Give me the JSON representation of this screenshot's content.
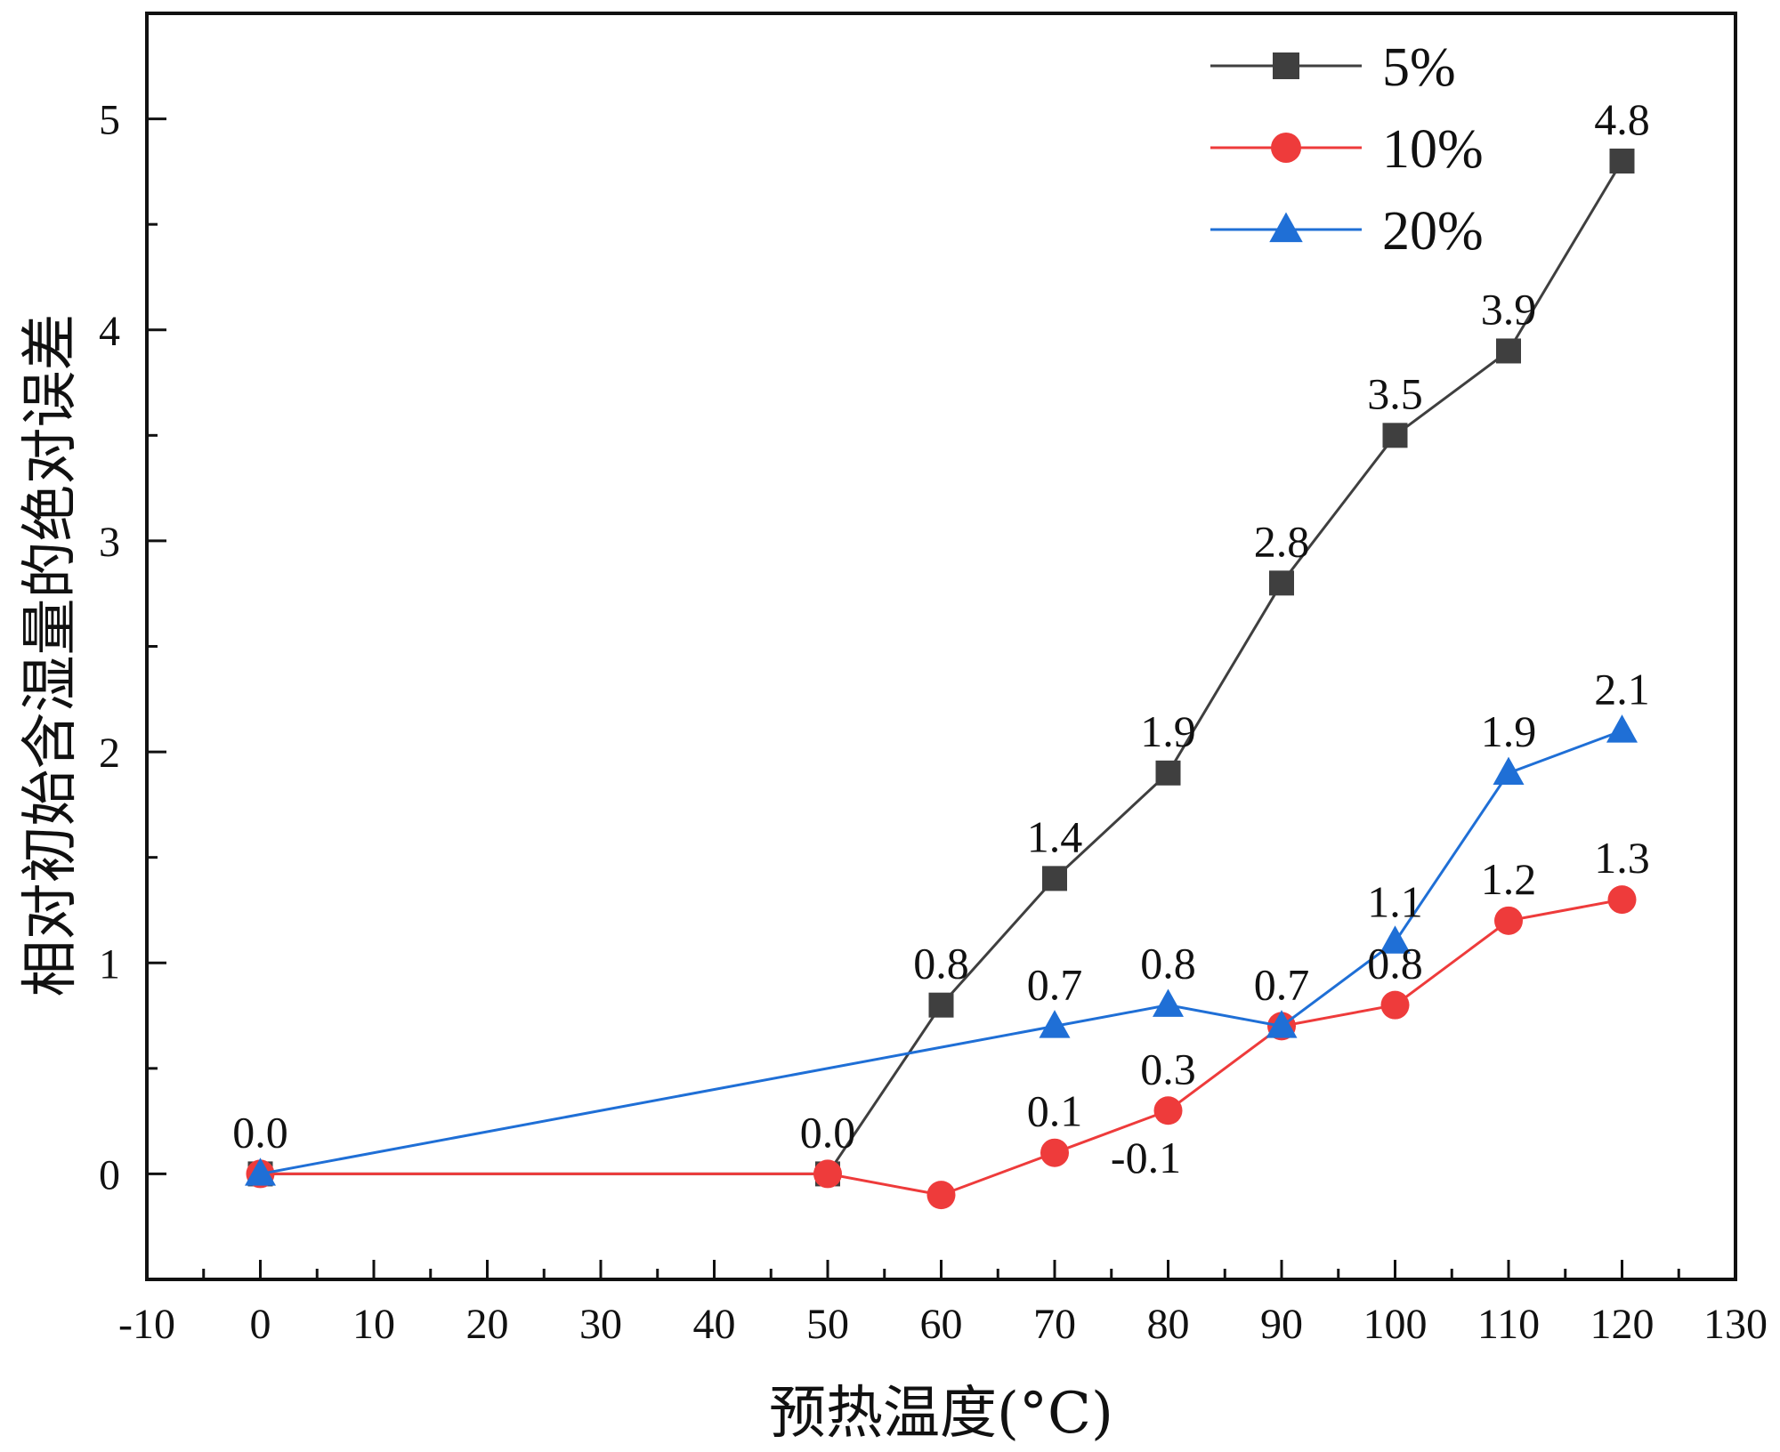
{
  "chart_data": {
    "type": "line",
    "title": "",
    "xlabel": "预热温度(°C)",
    "ylabel": "相对初始含湿量的绝对误差",
    "xlim": [
      -10,
      130
    ],
    "ylim": [
      -0.5,
      5.5
    ],
    "xticks": [
      -10,
      0,
      10,
      20,
      30,
      40,
      50,
      60,
      70,
      80,
      90,
      100,
      110,
      120,
      130
    ],
    "xtick_labels": [
      "-10",
      "0",
      "10",
      "20",
      "30",
      "40",
      "50",
      "60",
      "70",
      "80",
      "90",
      "100",
      "110",
      "120",
      "130"
    ],
    "yticks": [
      0,
      1,
      2,
      3,
      4,
      5
    ],
    "ytick_labels": [
      "0",
      "1",
      "2",
      "3",
      "4",
      "5"
    ],
    "grid": false,
    "legend_position": "top-right",
    "series": [
      {
        "name": "5%",
        "color": "#3f3f3f",
        "marker": "square",
        "x": [
          0,
          50,
          60,
          70,
          80,
          90,
          100,
          110,
          120
        ],
        "values": [
          0,
          0,
          0.8,
          1.4,
          1.9,
          2.8,
          3.5,
          3.9,
          4.8
        ],
        "labels": [
          {
            "x": 0,
            "y": 0,
            "text": "0.0"
          },
          {
            "x": 50,
            "y": 0,
            "text": "0.0"
          },
          {
            "x": 60,
            "y": 0.8,
            "text": "0.8"
          },
          {
            "x": 70,
            "y": 1.4,
            "text": "1.4"
          },
          {
            "x": 80,
            "y": 1.9,
            "text": "1.9"
          },
          {
            "x": 90,
            "y": 2.8,
            "text": "2.8"
          },
          {
            "x": 100,
            "y": 3.5,
            "text": "3.5"
          },
          {
            "x": 110,
            "y": 3.9,
            "text": "3.9"
          },
          {
            "x": 120,
            "y": 4.8,
            "text": "4.8"
          }
        ]
      },
      {
        "name": "10%",
        "color": "#ee3b3b",
        "marker": "circle",
        "x": [
          0,
          50,
          60,
          70,
          80,
          90,
          100,
          110,
          120
        ],
        "values": [
          0,
          0,
          -0.1,
          0.1,
          0.3,
          0.7,
          0.8,
          1.2,
          1.3
        ],
        "labels": [
          {
            "x": 60,
            "y": -0.1,
            "text": "-0.1"
          },
          {
            "x": 70,
            "y": 0.1,
            "text": "0.1"
          },
          {
            "x": 80,
            "y": 0.3,
            "text": "0.3"
          },
          {
            "x": 100,
            "y": 0.8,
            "text": "0.8"
          },
          {
            "x": 110,
            "y": 1.2,
            "text": "1.2"
          },
          {
            "x": 120,
            "y": 1.3,
            "text": "1.3"
          }
        ]
      },
      {
        "name": "20%",
        "color": "#1f6fd6",
        "marker": "triangle",
        "x": [
          0,
          70,
          80,
          90,
          100,
          110,
          120
        ],
        "values": [
          0,
          0.7,
          0.8,
          0.7,
          1.1,
          1.9,
          2.1
        ],
        "labels": [
          {
            "x": 70,
            "y": 0.7,
            "text": "0.7"
          },
          {
            "x": 80,
            "y": 0.8,
            "text": "0.8"
          },
          {
            "x": 90,
            "y": 0.7,
            "text": "0.7"
          },
          {
            "x": 100,
            "y": 1.1,
            "text": "1.1"
          },
          {
            "x": 110,
            "y": 1.9,
            "text": "1.9"
          },
          {
            "x": 120,
            "y": 2.1,
            "text": "2.1"
          }
        ]
      }
    ]
  }
}
